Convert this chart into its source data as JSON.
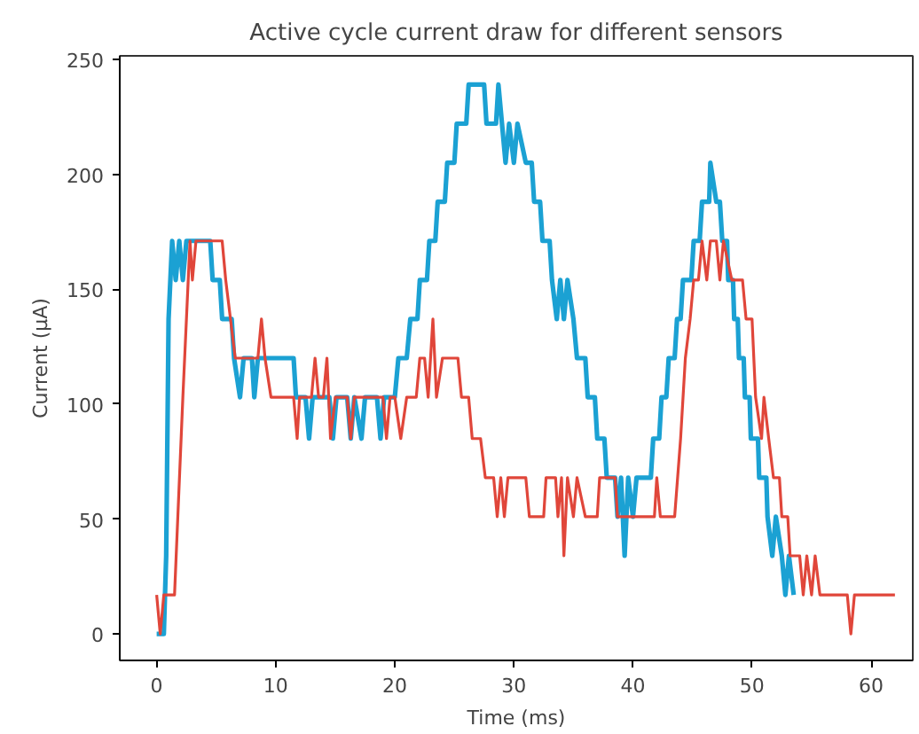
{
  "chart_data": {
    "type": "line",
    "title": "Active cycle current draw for different sensors",
    "xlabel": "Time (ms)",
    "ylabel": "Current (µA)",
    "xlim": [
      -3.1,
      63.5
    ],
    "ylim": [
      -11.5,
      251.5
    ],
    "xticks": [
      0,
      10,
      20,
      30,
      40,
      50,
      60
    ],
    "yticks": [
      0,
      50,
      100,
      150,
      200,
      250
    ],
    "grid": false,
    "line_style": "solid",
    "series": [
      {
        "color": "#1ba1d3",
        "x": [
          0,
          0.6,
          0.8,
          1.0,
          1.3,
          1.6,
          1.9,
          2.2,
          2.5,
          4.5,
          4.7,
          5.3,
          5.5,
          6.3,
          6.5,
          7,
          7.3,
          8,
          8.2,
          8.5,
          11.5,
          11.7,
          12.5,
          12.8,
          13.1,
          14.5,
          14.8,
          15.1,
          16,
          16.3,
          16.6,
          17.2,
          17.5,
          18.5,
          18.8,
          19.1,
          20,
          20.3,
          21,
          21.3,
          21.9,
          22.1,
          22.7,
          22.9,
          23.4,
          23.6,
          24.2,
          24.4,
          25,
          25.2,
          26,
          26.2,
          27.5,
          27.7,
          28.5,
          28.7,
          29,
          29.3,
          29.6,
          30,
          30.3,
          31,
          31.5,
          31.7,
          32.2,
          32.4,
          33,
          33.2,
          33.6,
          33.9,
          34.2,
          34.5,
          35,
          35.3,
          36,
          36.2,
          36.8,
          37,
          37.6,
          37.8,
          38.5,
          38.7,
          39,
          39.3,
          39.6,
          40,
          40.3,
          41.5,
          41.7,
          42.2,
          42.4,
          42.8,
          43,
          43.5,
          43.7,
          44,
          44.2,
          44.9,
          45.1,
          45.6,
          45.8,
          46.4,
          46.5,
          47,
          47.3,
          47.5,
          47.9,
          48.0,
          48.4,
          48.5,
          48.8,
          48.9,
          49.3,
          49.4,
          49.8,
          49.9,
          50.5,
          50.6,
          51.2,
          51.3,
          51.7,
          52,
          52.5,
          52.8,
          53.1,
          53.5
        ],
        "values": [
          0,
          0,
          34,
          137,
          171,
          154,
          171,
          154,
          171,
          171,
          154,
          154,
          137,
          137,
          120,
          103,
          120,
          120,
          103,
          120,
          120,
          103,
          103,
          85,
          103,
          103,
          85,
          103,
          103,
          85,
          103,
          85,
          103,
          103,
          85,
          103,
          103,
          120,
          120,
          137,
          137,
          154,
          154,
          171,
          171,
          188,
          188,
          205,
          205,
          222,
          222,
          239,
          239,
          222,
          222,
          239,
          222,
          205,
          222,
          205,
          222,
          205,
          205,
          188,
          188,
          171,
          171,
          154,
          137,
          154,
          137,
          154,
          137,
          120,
          120,
          103,
          103,
          85,
          85,
          68,
          68,
          51,
          68,
          34,
          68,
          51,
          68,
          68,
          85,
          85,
          103,
          103,
          120,
          120,
          137,
          137,
          154,
          154,
          171,
          171,
          188,
          188,
          205,
          188,
          188,
          171,
          171,
          154,
          154,
          137,
          137,
          120,
          120,
          103,
          103,
          85,
          85,
          68,
          68,
          51,
          34,
          51,
          34,
          17,
          34,
          17
        ]
      },
      {
        "color": "#e0463a",
        "x": [
          0,
          0.3,
          0.6,
          1.5,
          2.2,
          2.8,
          3,
          3.3,
          5.5,
          5.8,
          6.2,
          6.6,
          8.5,
          8.8,
          9.1,
          9.6,
          11.5,
          11.8,
          12,
          13,
          13.3,
          13.6,
          14,
          14.3,
          14.6,
          15,
          16,
          16.3,
          16.6,
          19,
          19.3,
          19.6,
          20,
          20.5,
          21,
          21.8,
          22.1,
          22.5,
          22.8,
          23.2,
          23.5,
          24,
          25.3,
          25.6,
          26.2,
          26.5,
          27.2,
          27.6,
          28.3,
          28.6,
          28.9,
          29.2,
          29.5,
          31,
          31.3,
          32.5,
          32.7,
          33.5,
          33.7,
          34,
          34.2,
          34.5,
          35,
          35.3,
          36,
          37,
          37.2,
          38.5,
          38.7,
          41.8,
          42,
          42.3,
          43.5,
          44,
          44.4,
          44.8,
          45.1,
          45.5,
          45.8,
          46.2,
          46.5,
          47,
          47.3,
          47.6,
          48.3,
          49.2,
          49.5,
          50,
          50.3,
          50.8,
          51,
          51.4,
          51.8,
          52.3,
          52.5,
          53,
          53.2,
          54,
          54.3,
          54.6,
          55,
          55.3,
          55.7,
          58,
          58.3,
          58.6,
          62
        ],
        "values": [
          17,
          0,
          17,
          17,
          103,
          171,
          154,
          171,
          171,
          154,
          137,
          120,
          120,
          137,
          120,
          103,
          103,
          85,
          103,
          103,
          120,
          103,
          103,
          120,
          85,
          103,
          103,
          85,
          103,
          103,
          85,
          103,
          103,
          85,
          103,
          103,
          120,
          120,
          103,
          137,
          103,
          120,
          120,
          103,
          103,
          85,
          85,
          68,
          68,
          51,
          68,
          51,
          68,
          68,
          51,
          51,
          68,
          68,
          51,
          68,
          34,
          68,
          51,
          68,
          51,
          51,
          68,
          68,
          51,
          51,
          68,
          51,
          51,
          85,
          120,
          137,
          154,
          154,
          171,
          154,
          171,
          171,
          154,
          171,
          154,
          154,
          137,
          137,
          103,
          85,
          103,
          85,
          68,
          68,
          51,
          51,
          34,
          34,
          17,
          34,
          17,
          34,
          17,
          17,
          0,
          17,
          17
        ]
      }
    ]
  }
}
